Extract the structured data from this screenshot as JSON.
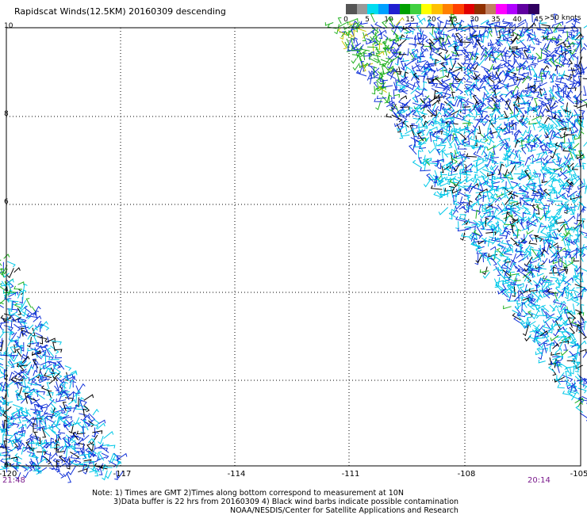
{
  "title": "Rapidscat Winds(12.5KM) 20160309 descending",
  "colorbar": {
    "unit_label": ">50 knots",
    "tick_labels": [
      "0",
      "5",
      "10",
      "15",
      "20",
      "25",
      "30",
      "35",
      "40",
      "45"
    ],
    "colors": [
      "#555555",
      "#999999",
      "#00dcf0",
      "#00a0ff",
      "#2020d0",
      "#00a000",
      "#40d040",
      "#ffff00",
      "#ffc000",
      "#ff8000",
      "#ff4000",
      "#e00000",
      "#903000",
      "#c08060",
      "#ff00ff",
      "#b000ff",
      "#6000a0",
      "#300060"
    ]
  },
  "axes": {
    "x_ticks": [
      "-120",
      "-117",
      "-114",
      "-111",
      "-108",
      "-105"
    ],
    "y_ticks": [
      "10",
      "8",
      "6",
      "4",
      "2",
      "0"
    ]
  },
  "times": {
    "left": "21:48",
    "right": "20:14"
  },
  "notes": {
    "line1": "Note: 1) Times are GMT 2)Times along bottom correspond to measurement at 10N",
    "line2": "3)Data buffer is 22 hrs from 20160309 4) Black wind barbs indicate possible contamination",
    "line3": "NOAA/NESDIS/Center for Satellite Applications and Research"
  },
  "swath_colors": {
    "cyan": "#00c8e8",
    "blue": "#1030d8",
    "green": "#20b020",
    "black": "#000000",
    "yellow": "#c8c800"
  }
}
